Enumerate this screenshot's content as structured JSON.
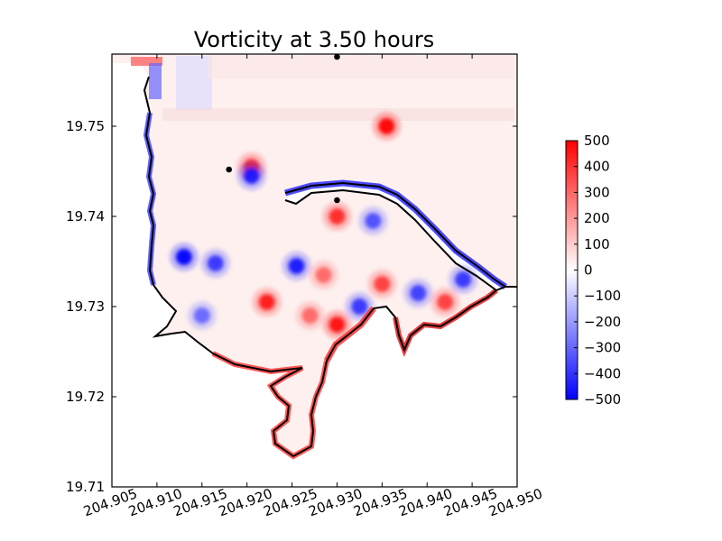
{
  "chart_data": {
    "type": "heatmap",
    "title": "Vorticity at 3.50 hours",
    "xlabel": "",
    "ylabel": "",
    "xlim": [
      204.905,
      204.95
    ],
    "ylim": [
      19.71,
      19.758
    ],
    "x_ticks": [
      "204.905",
      "204.910",
      "204.915",
      "204.920",
      "204.925",
      "204.930",
      "204.935",
      "204.940",
      "204.945",
      "204.950"
    ],
    "y_ticks": [
      "19.71",
      "19.72",
      "19.73",
      "19.74",
      "19.75"
    ],
    "x_tick_values": [
      204.905,
      204.91,
      204.915,
      204.92,
      204.925,
      204.93,
      204.935,
      204.94,
      204.945,
      204.95
    ],
    "y_tick_values": [
      19.71,
      19.72,
      19.73,
      19.74,
      19.75
    ],
    "colorbar": {
      "min": -500,
      "max": 500,
      "ticks": [
        "500",
        "400",
        "300",
        "200",
        "100",
        "0",
        "−100",
        "−200",
        "−300",
        "−400",
        "−500"
      ],
      "tick_values": [
        500,
        400,
        300,
        200,
        100,
        0,
        -100,
        -200,
        -300,
        -400,
        -500
      ],
      "colors": [
        "#0000ff",
        "#ffffff",
        "#ff0000"
      ]
    },
    "markers": [
      {
        "lon": 204.93,
        "lat": 19.7577
      },
      {
        "lon": 204.918,
        "lat": 19.7452
      },
      {
        "lon": 204.93,
        "lat": 19.7418
      }
    ],
    "eddies": [
      {
        "lon": 204.9355,
        "lat": 19.75,
        "sign": 1,
        "strength": 500
      },
      {
        "lon": 204.9205,
        "lat": 19.7455,
        "sign": 1,
        "strength": 420
      },
      {
        "lon": 204.9205,
        "lat": 19.7445,
        "sign": -1,
        "strength": 450
      },
      {
        "lon": 204.913,
        "lat": 19.7355,
        "sign": -1,
        "strength": 500
      },
      {
        "lon": 204.9165,
        "lat": 19.7348,
        "sign": -1,
        "strength": 400
      },
      {
        "lon": 204.9255,
        "lat": 19.7345,
        "sign": -1,
        "strength": 450
      },
      {
        "lon": 204.9222,
        "lat": 19.7305,
        "sign": 1,
        "strength": 450
      },
      {
        "lon": 204.9285,
        "lat": 19.7335,
        "sign": 1,
        "strength": 300
      },
      {
        "lon": 204.93,
        "lat": 19.728,
        "sign": 1,
        "strength": 480
      },
      {
        "lon": 204.9325,
        "lat": 19.73,
        "sign": -1,
        "strength": 400
      },
      {
        "lon": 204.93,
        "lat": 19.74,
        "sign": 1,
        "strength": 420
      },
      {
        "lon": 204.934,
        "lat": 19.7395,
        "sign": -1,
        "strength": 350
      },
      {
        "lon": 204.935,
        "lat": 19.7325,
        "sign": 1,
        "strength": 380
      },
      {
        "lon": 204.939,
        "lat": 19.7315,
        "sign": -1,
        "strength": 380
      },
      {
        "lon": 204.942,
        "lat": 19.7305,
        "sign": 1,
        "strength": 380
      },
      {
        "lon": 204.944,
        "lat": 19.733,
        "sign": -1,
        "strength": 400
      },
      {
        "lon": 204.915,
        "lat": 19.729,
        "sign": -1,
        "strength": 300
      },
      {
        "lon": 204.927,
        "lat": 19.729,
        "sign": 1,
        "strength": 300
      }
    ]
  }
}
